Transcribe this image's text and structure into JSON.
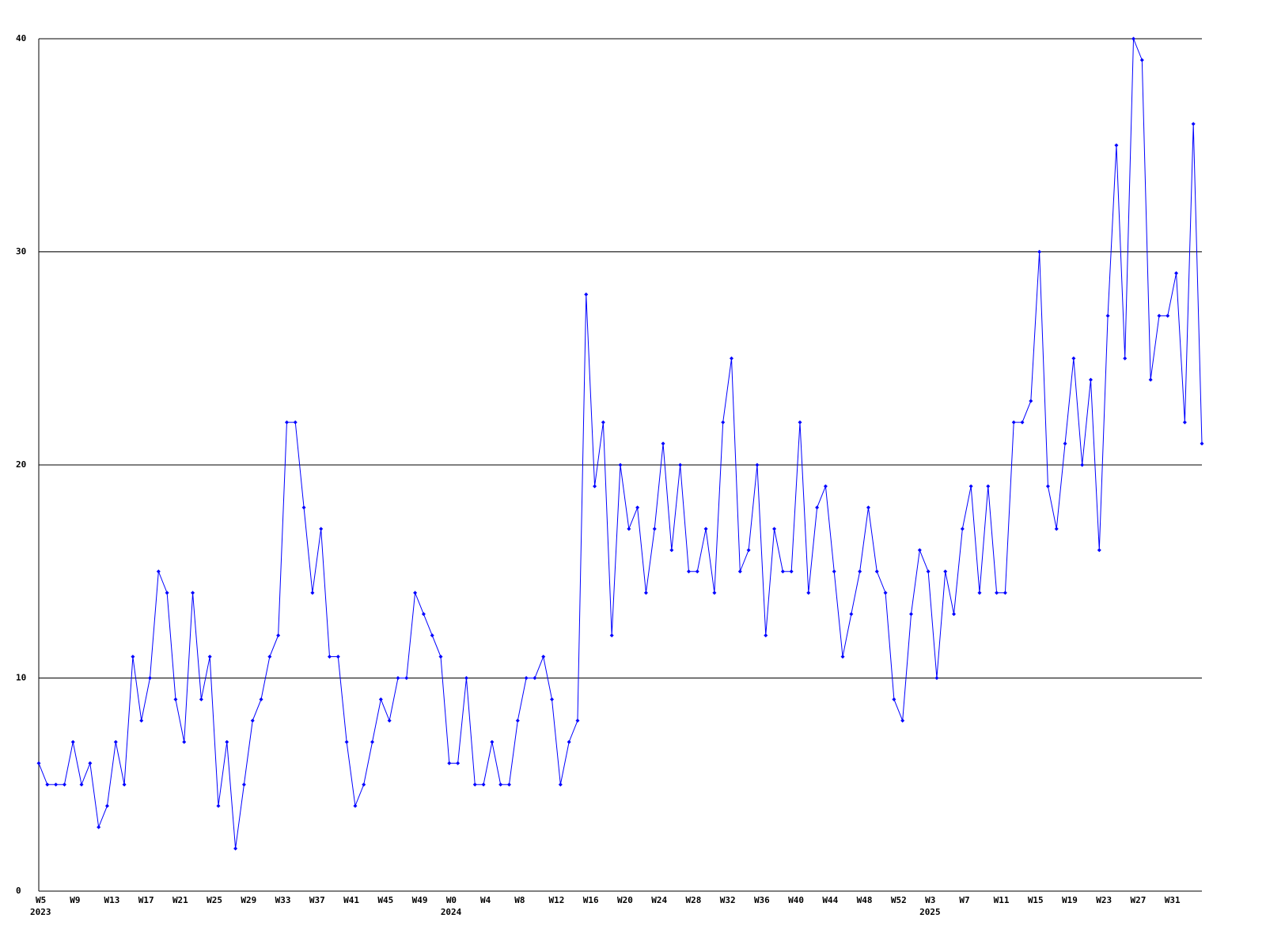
{
  "chart_data": {
    "type": "line",
    "categories": [
      "W5",
      null,
      null,
      null,
      "W9",
      null,
      null,
      null,
      "W13",
      null,
      null,
      null,
      "W17",
      null,
      null,
      null,
      "W21",
      null,
      null,
      null,
      "W25",
      null,
      null,
      null,
      "W29",
      null,
      null,
      null,
      "W33",
      null,
      null,
      null,
      "W37",
      null,
      null,
      null,
      "W41",
      null,
      null,
      null,
      "W45",
      null,
      null,
      null,
      "W49",
      null,
      null,
      null,
      "W0",
      null,
      null,
      null,
      "W4",
      null,
      null,
      null,
      "W8",
      null,
      null,
      null,
      "W12",
      null,
      null,
      null,
      "W16",
      null,
      null,
      null,
      "W20",
      null,
      null,
      null,
      "W24",
      null,
      null,
      null,
      "W28",
      null,
      null,
      null,
      "W32",
      null,
      null,
      null,
      "W36",
      null,
      null,
      null,
      "W40",
      null,
      null,
      null,
      "W44",
      null,
      null,
      null,
      "W48",
      null,
      null,
      null,
      "W52",
      null,
      null,
      null,
      "W3",
      null,
      null,
      null,
      "W7",
      null,
      null,
      null,
      "W11",
      null,
      null,
      null,
      "W15",
      null,
      null,
      null,
      "W19",
      null,
      null,
      null,
      "W23",
      null,
      null,
      null,
      "W27",
      null,
      null,
      null,
      "W31",
      null,
      null,
      null,
      null
    ],
    "category_groups": [
      {
        "label": "2023",
        "at": 0
      },
      {
        "label": "2024",
        "at": 48
      },
      {
        "label": "2025",
        "at": 104
      }
    ],
    "series": [
      {
        "color": "#0000ff",
        "values": [
          6,
          5,
          5,
          5,
          7,
          5,
          6,
          3,
          4,
          7,
          5,
          11,
          8,
          10,
          15,
          14,
          9,
          7,
          14,
          9,
          11,
          4,
          7,
          2,
          5,
          8,
          9,
          11,
          12,
          22,
          22,
          18,
          14,
          17,
          11,
          11,
          7,
          4,
          5,
          7,
          9,
          8,
          10,
          10,
          14,
          13,
          12,
          11,
          6,
          6,
          10,
          5,
          5,
          7,
          5,
          5,
          8,
          10,
          10,
          11,
          9,
          5,
          7,
          8,
          28,
          19,
          22,
          12,
          20,
          17,
          18,
          14,
          17,
          21,
          16,
          20,
          15,
          15,
          17,
          14,
          22,
          25,
          15,
          16,
          20,
          12,
          17,
          15,
          15,
          22,
          14,
          18,
          19,
          15,
          11,
          13,
          15,
          18,
          15,
          14,
          9,
          8,
          13,
          16,
          15,
          10,
          15,
          13,
          17,
          19,
          14,
          19,
          14,
          14,
          22,
          22,
          23,
          30,
          19,
          17,
          21,
          25,
          20,
          24,
          16,
          27,
          35,
          25,
          40,
          39,
          24,
          27,
          27,
          29,
          22,
          36,
          21
        ]
      }
    ],
    "ylim": [
      0,
      40
    ],
    "yticks": [
      0,
      10,
      20,
      30,
      40
    ],
    "grid": true
  }
}
